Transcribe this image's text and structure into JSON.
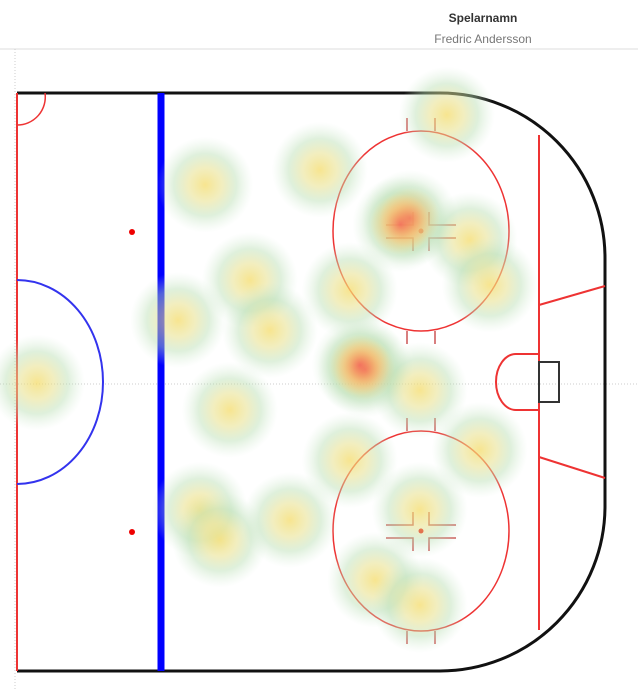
{
  "chart_data": {
    "type": "heatmap",
    "title": "Spelarnamn",
    "subtitle": "Fredric Andersson",
    "xlim": [
      0,
      100
    ],
    "ylim": [
      -42.5,
      42.5
    ],
    "x": [
      73.1,
      32.0,
      51.5,
      66.8,
      65.2,
      77.0,
      80.4,
      56.6,
      39.6,
      27.4,
      43.0,
      59.2,
      58.3,
      68.5,
      36.2,
      3.4,
      78.7,
      56.6,
      31.1,
      46.4,
      68.5,
      60.9,
      68.5,
      34.5
    ],
    "y": [
      39.3,
      29.0,
      31.2,
      24.1,
      23.2,
      20.9,
      14.3,
      13.5,
      15.0,
      9.1,
      7.6,
      1.8,
      2.5,
      -1.2,
      -4.1,
      -0.1,
      -10.0,
      -11.5,
      -18.8,
      -20.3,
      -18.8,
      -29.1,
      -32.8,
      -23.2
    ]
  }
}
